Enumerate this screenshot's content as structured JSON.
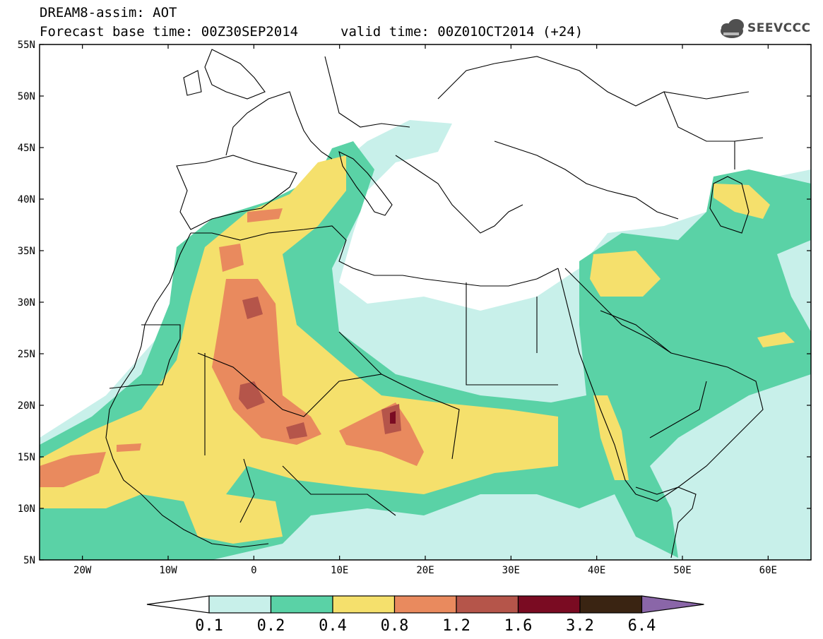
{
  "title": {
    "line1": "DREAM8-assim: AOT",
    "base_time": "Forecast base time: 00Z30SEP2014",
    "valid_time": "valid time: 00Z01OCT2014 (+24)"
  },
  "logo": {
    "text": "SEEVCCC",
    "icon": "cloud-icon"
  },
  "axes": {
    "lat_labels": [
      "55N",
      "50N",
      "45N",
      "40N",
      "35N",
      "30N",
      "25N",
      "20N",
      "15N",
      "10N",
      "5N"
    ],
    "lon_labels": [
      "20W",
      "10W",
      "0",
      "10E",
      "20E",
      "30E",
      "40E",
      "50E",
      "60E"
    ]
  },
  "colorbar": {
    "labels": [
      "0.1",
      "0.2",
      "0.4",
      "0.8",
      "1.2",
      "1.6",
      "3.2",
      "6.4"
    ],
    "colors": [
      "#ffffff",
      "#c8f0ea",
      "#5ad2a6",
      "#f5e06c",
      "#e98a5e",
      "#b5554a",
      "#7a0b22",
      "#3a2412",
      "#8a66a8"
    ]
  }
}
